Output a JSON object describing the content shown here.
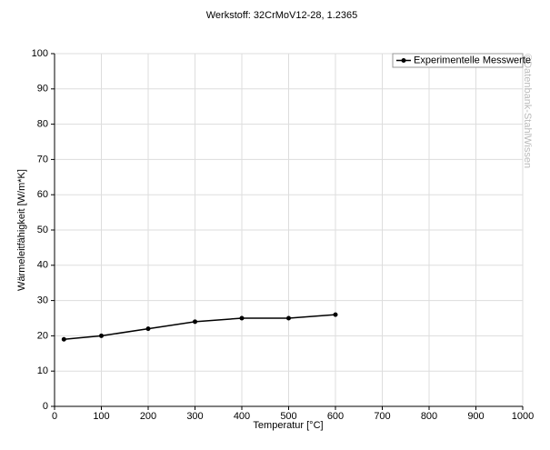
{
  "chart_data": {
    "type": "line",
    "title": "Werkstoff: 32CrMoV12-28, 1.2365",
    "x_label": "Temperatur [°C]",
    "y_label": "Wärmeleitfähigkeit [W/m*K]",
    "watermark": "©Datenbank-StahlWissen",
    "x": [
      20,
      100,
      200,
      300,
      400,
      500,
      600
    ],
    "series": [
      {
        "name": "Experimentelle Messwerte",
        "color": "#000000",
        "values": [
          19,
          20,
          22,
          24,
          25,
          25,
          26
        ]
      }
    ],
    "xlim": [
      0,
      1000
    ],
    "xticks": [
      0,
      100,
      200,
      300,
      400,
      500,
      600,
      700,
      800,
      900,
      1000
    ],
    "ylim": [
      0,
      100
    ],
    "yticks": [
      0,
      10,
      20,
      30,
      40,
      50,
      60,
      70,
      80,
      90,
      100
    ],
    "grid": true,
    "legend": "top-right"
  }
}
